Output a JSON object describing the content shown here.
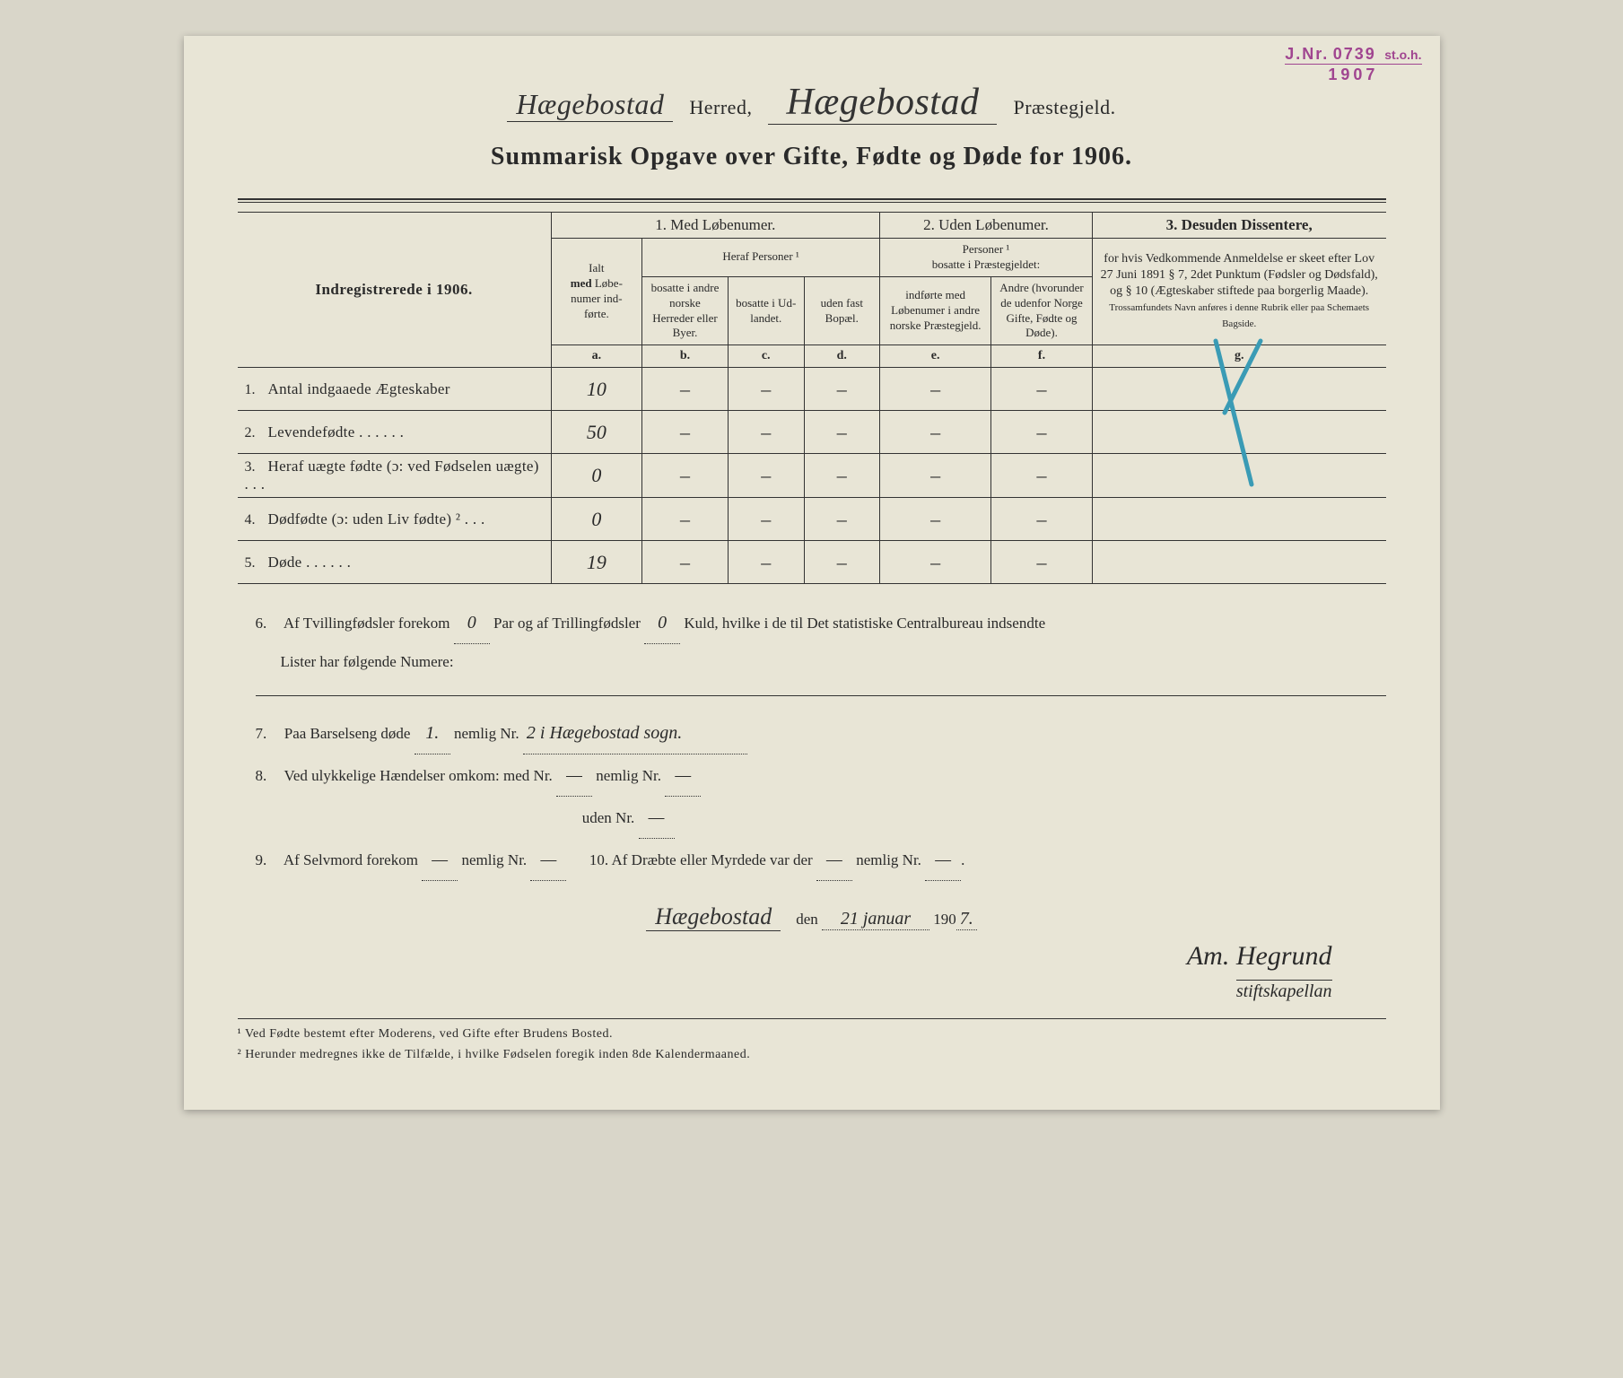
{
  "header": {
    "herred_value": "Hægebostad",
    "herred_label": "Herred,",
    "praestegjeld_value": "Hægebostad",
    "praestegjeld_label": "Præstegjeld."
  },
  "stamp": {
    "jnr_label": "J.Nr.",
    "jnr_value": "0739",
    "sub": "st.o.h.",
    "year": "1907"
  },
  "title": "Summarisk Opgave over Gifte, Fødte og Døde for 1906.",
  "table": {
    "left_header": "Indregistrerede i 1906.",
    "section1_title": "1.  Med Løbenumer.",
    "section2_title": "2. Uden Løbenumer.",
    "section3_title": "3.  Desuden Dissentere,",
    "ialt": "Ialt\nmed Løbe-\nnumer ind-\nførte.",
    "heraf": "Heraf Personer ¹",
    "col_b": "bosatte i andre norske Herreder eller Byer.",
    "col_c": "bosatte i Ud-landet.",
    "col_d": "uden fast Bopæl.",
    "personer2": "Personer ¹\nbosatte i Præstegjeldet:",
    "col_e": "indførte med Løbenumer i andre norske Præstegjeld.",
    "col_f": "Andre (hvorunder de udenfor Norge Gifte, Fødte og Døde).",
    "col_g": "for hvis Vedkommende Anmeldelse er skeet efter Lov 27 Juni 1891 § 7, 2det Punktum (Fødsler og Dødsfald), og § 10 (Ægteskaber stiftede paa borgerlig Maade).",
    "col_g_sub": "Trossamfundets Navn anføres i denne Rubrik eller paa Schemaets Bagside.",
    "letters": {
      "a": "a.",
      "b": "b.",
      "c": "c.",
      "d": "d.",
      "e": "e.",
      "f": "f.",
      "g": "g."
    }
  },
  "rows": [
    {
      "n": "1.",
      "label": "Antal indgaaede Ægteskaber",
      "a": "10",
      "b": "–",
      "c": "–",
      "d": "–",
      "e": "–",
      "f": "–",
      "g": ""
    },
    {
      "n": "2.",
      "label": "Levendefødte",
      "a": "50",
      "b": "–",
      "c": "–",
      "d": "–",
      "e": "–",
      "f": "–",
      "g": ""
    },
    {
      "n": "3.",
      "label": "Heraf uægte fødte (ɔ: ved Fødselen uægte)",
      "a": "0",
      "b": "–",
      "c": "–",
      "d": "–",
      "e": "–",
      "f": "–",
      "g": ""
    },
    {
      "n": "4.",
      "label": "Dødfødte (ɔ: uden Liv fødte) ²",
      "a": "0",
      "b": "–",
      "c": "–",
      "d": "–",
      "e": "–",
      "f": "–",
      "g": ""
    },
    {
      "n": "5.",
      "label": "Døde",
      "a": "19",
      "b": "–",
      "c": "–",
      "d": "–",
      "e": "–",
      "f": "–",
      "g": ""
    }
  ],
  "below": {
    "q6a": "Af Tvillingfødsler forekom",
    "q6_val1": "0",
    "q6b": "Par og af Trillingfødsler",
    "q6_val2": "0",
    "q6c": "Kuld, hvilke i de til Det statistiske Centralbureau indsendte",
    "q6d": "Lister har følgende Numere:",
    "q7a": "Paa Barselseng døde",
    "q7_val1": "1.",
    "q7b": "nemlig Nr.",
    "q7_val2": "2  i  Hægebostad sogn.",
    "q8a": "Ved ulykkelige Hændelser omkom:  med Nr.",
    "q8_val1": "—",
    "q8b": "nemlig Nr.",
    "q8_val2": "—",
    "q8c": "uden Nr.",
    "q8_val3": "—",
    "q9a": "Af Selvmord forekom",
    "q9_val1": "—",
    "q9b": "nemlig Nr.",
    "q9_val2": "—",
    "q10a": "10.   Af Dræbte eller Myrdede var der",
    "q10_val1": "—",
    "q10b": "nemlig Nr.",
    "q10_val2": "—"
  },
  "signature": {
    "place": "Hægebostad",
    "den": "den",
    "date": "21 januar",
    "year_prefix": "190",
    "year_suffix": "7.",
    "name": "Am. Hegrund",
    "title": "stiftskapellan"
  },
  "footnotes": {
    "f1": "¹ Ved Fødte bestemt efter Moderens, ved Gifte efter Brudens Bosted.",
    "f2": "² Herunder medregnes ikke de Tilfælde, i hvilke Fødselen foregik inden 8de Kalendermaaned."
  },
  "colors": {
    "paper": "#e8e5d6",
    "ink": "#2a2a2a",
    "stamp": "#a04590",
    "blue_pencil": "#3a9bb5"
  }
}
